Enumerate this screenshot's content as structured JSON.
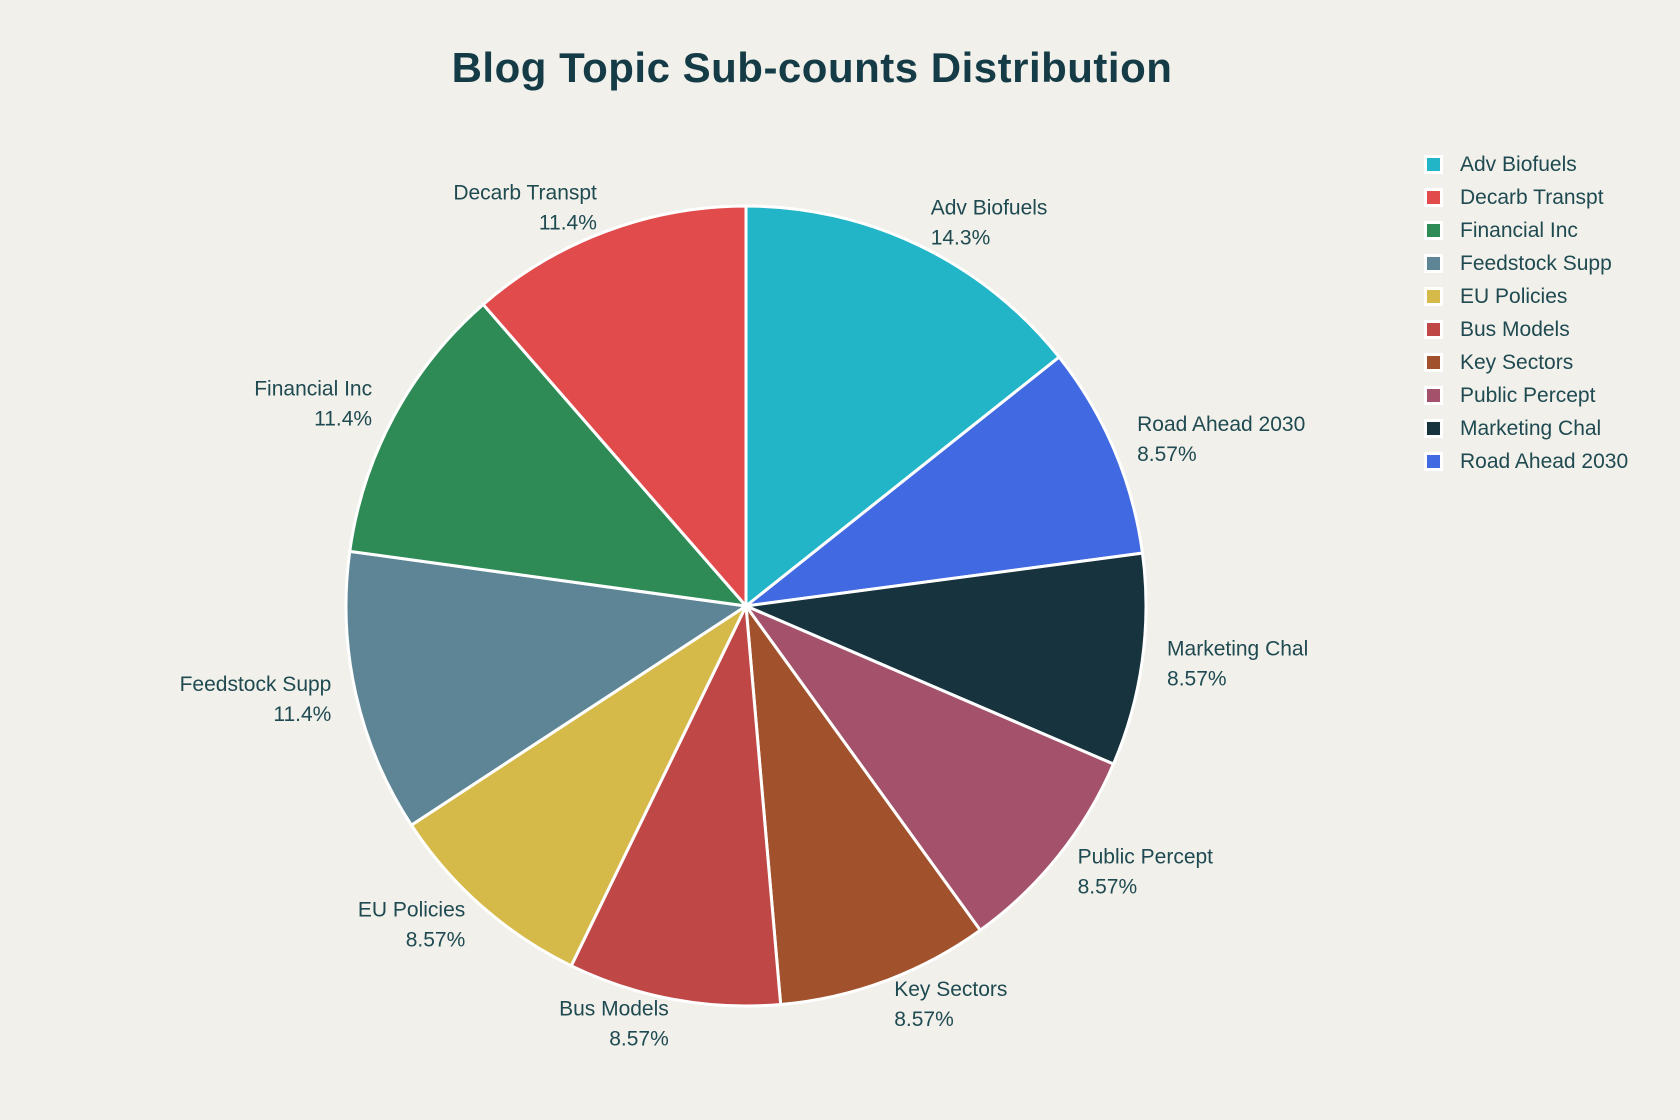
{
  "chart_data": {
    "type": "pie",
    "title": "Blog Topic Sub-counts Distribution",
    "start_angle_deg": 90,
    "direction": "counterclockwise",
    "legend_position": "right",
    "background_color": "#f1f0ea",
    "title_color": "#143b46",
    "label_color": "#1f4a51",
    "slices": [
      {
        "label": "Adv Biofuels",
        "percent": 14.3,
        "percent_label": "14.3%",
        "color": "#21b5c7"
      },
      {
        "label": "Decarb Transpt",
        "percent": 11.4,
        "percent_label": "11.4%",
        "color": "#e14b4b"
      },
      {
        "label": "Financial Inc",
        "percent": 11.4,
        "percent_label": "11.4%",
        "color": "#2e8b56"
      },
      {
        "label": "Feedstock Supp",
        "percent": 11.4,
        "percent_label": "11.4%",
        "color": "#5e8596"
      },
      {
        "label": "EU Policies",
        "percent": 8.57,
        "percent_label": "8.57%",
        "color": "#d5ba4a"
      },
      {
        "label": "Bus Models",
        "percent": 8.57,
        "percent_label": "8.57%",
        "color": "#bf4847"
      },
      {
        "label": "Key Sectors",
        "percent": 8.57,
        "percent_label": "8.57%",
        "color": "#a1522c"
      },
      {
        "label": "Public Percept",
        "percent": 8.57,
        "percent_label": "8.57%",
        "color": "#a4526b"
      },
      {
        "label": "Marketing Chal",
        "percent": 8.57,
        "percent_label": "8.57%",
        "color": "#16333e"
      },
      {
        "label": "Road Ahead 2030",
        "percent": 8.57,
        "percent_label": "8.57%",
        "color": "#4169e1"
      }
    ]
  }
}
